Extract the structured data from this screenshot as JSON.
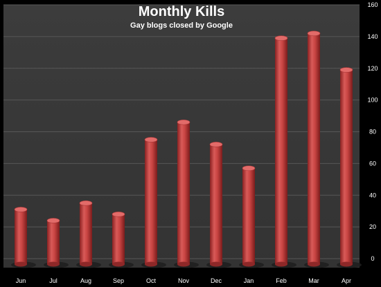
{
  "chart_data": {
    "type": "bar",
    "title": "Monthly Kills",
    "subtitle": "Gay blogs closed by Google",
    "xlabel": "",
    "ylabel": "",
    "categories": [
      "Jun",
      "Jul",
      "Aug",
      "Sep",
      "Oct",
      "Nov",
      "Dec",
      "Jan",
      "Feb",
      "Mar",
      "Apr"
    ],
    "values": [
      31,
      24,
      35,
      28,
      75,
      86,
      72,
      57,
      139,
      142,
      119
    ],
    "ylim": [
      0,
      160
    ],
    "yticks": [
      "0",
      "20",
      "40",
      "60",
      "80",
      "100",
      "120",
      "140",
      "160"
    ],
    "y_axis_side": "right",
    "grid": true,
    "legend": "none",
    "bar_color": "#c0403f",
    "plot_background": "#3a3a3a",
    "background": "#000000",
    "text_color": "#ffffff"
  }
}
